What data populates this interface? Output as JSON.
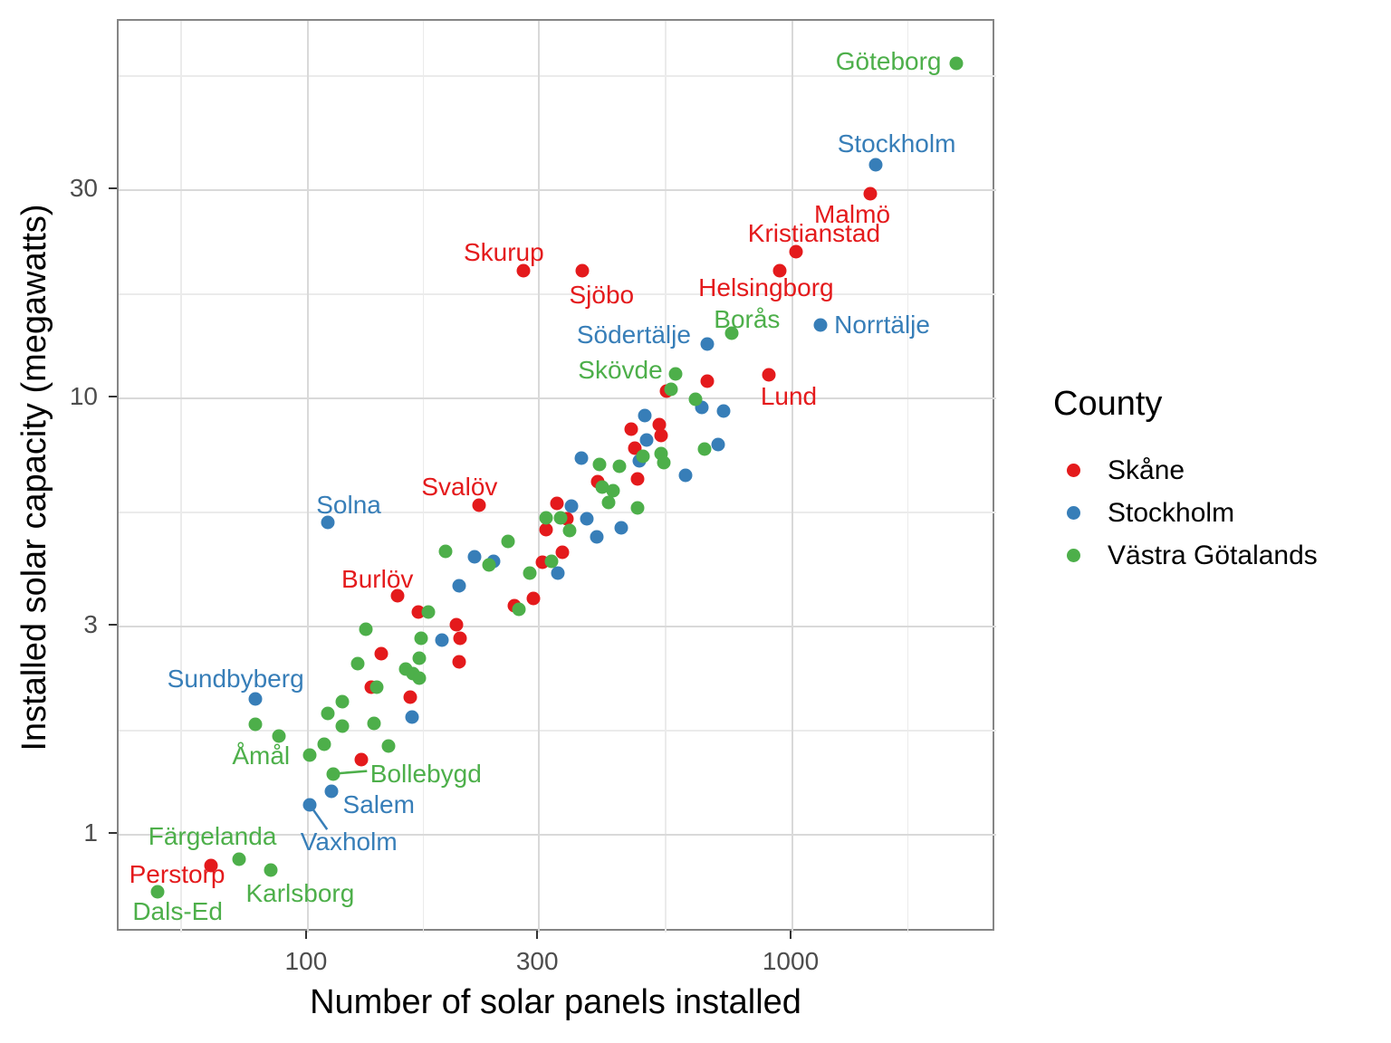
{
  "chart_data": {
    "type": "scatter",
    "title": "",
    "xlabel": "Number of solar panels installed",
    "ylabel": "Installed solar capacity (megawatts)",
    "x_scale": "log10",
    "y_scale": "log10",
    "x_ticks": [
      100,
      300,
      1000
    ],
    "y_ticks": [
      1,
      3,
      10,
      30
    ],
    "x_minor_breaks": [
      54.8,
      173.2,
      547.7,
      1732
    ],
    "y_minor_breaks": [
      1.732,
      5.477,
      17.32,
      54.77
    ],
    "x_domain": [
      40.7,
      2633
    ],
    "y_domain": [
      0.597,
      73.3
    ],
    "grid": "major and minor gridlines, white panel, gray border",
    "legend_position": "right",
    "legend_title": "County",
    "series": [
      {
        "name": "Skåne",
        "color": "#E41A1C",
        "points": [
          {
            "x": 63,
            "y": 0.85,
            "label": "Perstorp",
            "ldx": -37,
            "ldy": 10
          },
          {
            "x": 142,
            "y": 2.6
          },
          {
            "x": 135,
            "y": 2.18
          },
          {
            "x": 163,
            "y": 2.07
          },
          {
            "x": 129,
            "y": 1.49
          },
          {
            "x": 205,
            "y": 2.49
          },
          {
            "x": 206,
            "y": 2.82
          },
          {
            "x": 169,
            "y": 3.24
          },
          {
            "x": 153,
            "y": 3.53,
            "label": "Burlöv",
            "ldx": -22,
            "ldy": -18
          },
          {
            "x": 203,
            "y": 3.03
          },
          {
            "x": 226,
            "y": 5.69,
            "label": "Svalöv",
            "ldx": -22,
            "ldy": -20
          },
          {
            "x": 267,
            "y": 3.35
          },
          {
            "x": 292,
            "y": 3.48
          },
          {
            "x": 305,
            "y": 4.21
          },
          {
            "x": 335,
            "y": 4.44
          },
          {
            "x": 342,
            "y": 5.3
          },
          {
            "x": 310,
            "y": 5.0
          },
          {
            "x": 326,
            "y": 5.74
          },
          {
            "x": 396,
            "y": 6.44
          },
          {
            "x": 465,
            "y": 8.5
          },
          {
            "x": 479,
            "y": 6.54
          },
          {
            "x": 531,
            "y": 8.7
          },
          {
            "x": 536,
            "y": 8.22
          },
          {
            "x": 473,
            "y": 7.69
          },
          {
            "x": 550,
            "y": 10.4
          },
          {
            "x": 667,
            "y": 10.95
          },
          {
            "x": 279,
            "y": 19.6,
            "label": "Skurup",
            "ldx": -22,
            "ldy": -20
          },
          {
            "x": 369,
            "y": 19.6,
            "label": "Sjöbo",
            "ldx": 21,
            "ldy": 27
          },
          {
            "x": 894,
            "y": 11.3,
            "label": "Lund",
            "ldx": 22,
            "ldy": 24
          },
          {
            "x": 941,
            "y": 19.6,
            "label": "Helsingborg",
            "ldx": -15,
            "ldy": 19
          },
          {
            "x": 1017,
            "y": 21.7,
            "label": "Kristianstad",
            "ldx": 20,
            "ldy": -20
          },
          {
            "x": 1448,
            "y": 29.4,
            "label": "Malmö",
            "ldx": -20,
            "ldy": 23
          }
        ]
      },
      {
        "name": "Stockholm",
        "color": "#377EB8",
        "points": [
          {
            "x": 78,
            "y": 2.05,
            "label": "Sundbyberg",
            "ldx": -22,
            "ldy": -22
          },
          {
            "x": 101,
            "y": 1.17,
            "label": "Vaxholm",
            "ldx": 43,
            "ldy": 41,
            "sdx": 19,
            "sdy": 27
          },
          {
            "x": 112,
            "y": 1.26,
            "label": "Salem",
            "ldx": 52,
            "ldy": 15
          },
          {
            "x": 110,
            "y": 5.2,
            "label": "Solna",
            "ldx": 23,
            "ldy": -19
          },
          {
            "x": 164,
            "y": 1.86
          },
          {
            "x": 189,
            "y": 2.79
          },
          {
            "x": 221,
            "y": 4.33
          },
          {
            "x": 242,
            "y": 4.23
          },
          {
            "x": 205,
            "y": 3.72
          },
          {
            "x": 350,
            "y": 5.66
          },
          {
            "x": 376,
            "y": 5.3
          },
          {
            "x": 395,
            "y": 4.81
          },
          {
            "x": 443,
            "y": 5.05
          },
          {
            "x": 328,
            "y": 3.98
          },
          {
            "x": 367,
            "y": 7.3
          },
          {
            "x": 496,
            "y": 9.13
          },
          {
            "x": 500,
            "y": 8.03
          },
          {
            "x": 483,
            "y": 7.19
          },
          {
            "x": 602,
            "y": 6.66
          },
          {
            "x": 650,
            "y": 9.53
          },
          {
            "x": 721,
            "y": 9.35
          },
          {
            "x": 702,
            "y": 7.84
          },
          {
            "x": 667,
            "y": 13.3,
            "label": "Södertälje",
            "ldx": -81,
            "ldy": -10
          },
          {
            "x": 1143,
            "y": 14.7,
            "label": "Norrtälje",
            "ldx": 68,
            "ldy": 0
          },
          {
            "x": 1486,
            "y": 34.3,
            "label": "Stockholm",
            "ldx": 23,
            "ldy": -23
          }
        ]
      },
      {
        "name": "Västra Götalands",
        "color": "#4DAF4A",
        "points": [
          {
            "x": 49,
            "y": 0.74,
            "label": "Dals-Ed",
            "ldx": 22,
            "ldy": 22
          },
          {
            "x": 72,
            "y": 0.88,
            "label": "Färgelanda",
            "ldx": -29,
            "ldy": -25
          },
          {
            "x": 84,
            "y": 0.83,
            "label": "Karlsborg",
            "ldx": 32,
            "ldy": 26
          },
          {
            "x": 78,
            "y": 1.79
          },
          {
            "x": 87,
            "y": 1.68
          },
          {
            "x": 101,
            "y": 1.52,
            "label": "Åmål",
            "ldx": -54,
            "ldy": 1
          },
          {
            "x": 108,
            "y": 1.61
          },
          {
            "x": 110,
            "y": 1.9
          },
          {
            "x": 118,
            "y": 2.02
          },
          {
            "x": 118,
            "y": 1.77
          },
          {
            "x": 127,
            "y": 2.47
          },
          {
            "x": 132,
            "y": 2.96
          },
          {
            "x": 139,
            "y": 2.18
          },
          {
            "x": 137,
            "y": 1.8
          },
          {
            "x": 113,
            "y": 1.38,
            "label": "Bollebygd",
            "ldx": 102,
            "ldy": 0,
            "sdx": 37,
            "sdy": -3
          },
          {
            "x": 147,
            "y": 1.6
          },
          {
            "x": 159,
            "y": 2.4
          },
          {
            "x": 165,
            "y": 2.34
          },
          {
            "x": 170,
            "y": 2.29
          },
          {
            "x": 170,
            "y": 2.54
          },
          {
            "x": 171,
            "y": 2.82
          },
          {
            "x": 177,
            "y": 3.24
          },
          {
            "x": 192,
            "y": 4.46
          },
          {
            "x": 237,
            "y": 4.15
          },
          {
            "x": 259,
            "y": 4.7
          },
          {
            "x": 273,
            "y": 3.29
          },
          {
            "x": 310,
            "y": 5.32
          },
          {
            "x": 318,
            "y": 4.23
          },
          {
            "x": 287,
            "y": 3.98
          },
          {
            "x": 332,
            "y": 5.33
          },
          {
            "x": 347,
            "y": 4.98
          },
          {
            "x": 405,
            "y": 6.26
          },
          {
            "x": 427,
            "y": 6.14
          },
          {
            "x": 417,
            "y": 5.77
          },
          {
            "x": 479,
            "y": 5.61
          },
          {
            "x": 400,
            "y": 7.07
          },
          {
            "x": 440,
            "y": 6.98
          },
          {
            "x": 492,
            "y": 7.36
          },
          {
            "x": 536,
            "y": 7.47
          },
          {
            "x": 543,
            "y": 7.12
          },
          {
            "x": 562,
            "y": 10.5
          },
          {
            "x": 574,
            "y": 11.4,
            "label": "Skövde",
            "ldx": -61,
            "ldy": -4
          },
          {
            "x": 631,
            "y": 9.95
          },
          {
            "x": 659,
            "y": 7.65
          },
          {
            "x": 749,
            "y": 14.1,
            "label": "Borås",
            "ldx": 17,
            "ldy": -15
          },
          {
            "x": 2180,
            "y": 58.6,
            "label": "Göteborg",
            "ldx": -75,
            "ldy": -2
          }
        ]
      }
    ]
  }
}
